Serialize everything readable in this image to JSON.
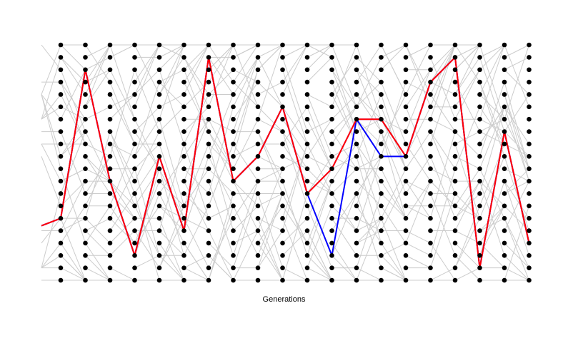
{
  "chart_data": {
    "type": "genealogy",
    "xlabel": "Generations",
    "generations": 20,
    "individuals_per_generation": 20,
    "colors": {
      "background_edges": "#cccccc",
      "dots": "#000000",
      "lineage_red": "#ff0000",
      "lineage_blue": "#0000ff",
      "lineage_purple": "#a020f0"
    },
    "lineages": [
      {
        "color": "#0000ff",
        "path": [
          [
            0,
            14
          ],
          [
            1,
            2
          ],
          [
            2,
            11
          ],
          [
            3,
            17
          ],
          [
            4,
            9
          ],
          [
            5,
            15
          ],
          [
            6,
            1
          ],
          [
            7,
            11
          ],
          [
            8,
            9
          ],
          [
            9,
            5
          ],
          [
            10,
            12
          ],
          [
            11,
            17
          ],
          [
            12,
            6
          ],
          [
            13,
            9
          ],
          [
            14,
            9
          ],
          [
            15,
            3
          ],
          [
            16,
            1
          ],
          [
            17,
            18
          ],
          [
            18,
            7
          ],
          [
            19,
            16
          ]
        ]
      },
      {
        "color": "#a020f0",
        "path": [
          [
            0,
            14
          ],
          [
            1,
            2
          ],
          [
            2,
            11
          ],
          [
            3,
            17
          ],
          [
            4,
            9
          ],
          [
            5,
            15
          ],
          [
            6,
            1
          ],
          [
            7,
            11
          ],
          [
            8,
            9
          ],
          [
            9,
            5
          ],
          [
            10,
            12
          ],
          [
            11,
            10
          ],
          [
            12,
            6
          ],
          [
            13,
            6
          ],
          [
            14,
            9
          ],
          [
            15,
            3
          ],
          [
            16,
            1
          ],
          [
            17,
            18
          ],
          [
            18,
            7
          ],
          [
            19,
            16
          ]
        ]
      },
      {
        "color": "#ff0000",
        "path": [
          [
            0,
            14
          ],
          [
            1,
            2
          ],
          [
            2,
            11
          ],
          [
            3,
            17
          ],
          [
            4,
            9
          ],
          [
            5,
            15
          ],
          [
            6,
            1
          ],
          [
            7,
            11
          ],
          [
            8,
            9
          ],
          [
            9,
            5
          ],
          [
            10,
            12
          ],
          [
            11,
            10
          ],
          [
            12,
            6
          ],
          [
            13,
            6
          ],
          [
            14,
            9
          ],
          [
            15,
            3
          ],
          [
            16,
            1
          ],
          [
            17,
            18
          ],
          [
            18,
            7
          ],
          [
            19,
            16
          ]
        ]
      }
    ]
  }
}
